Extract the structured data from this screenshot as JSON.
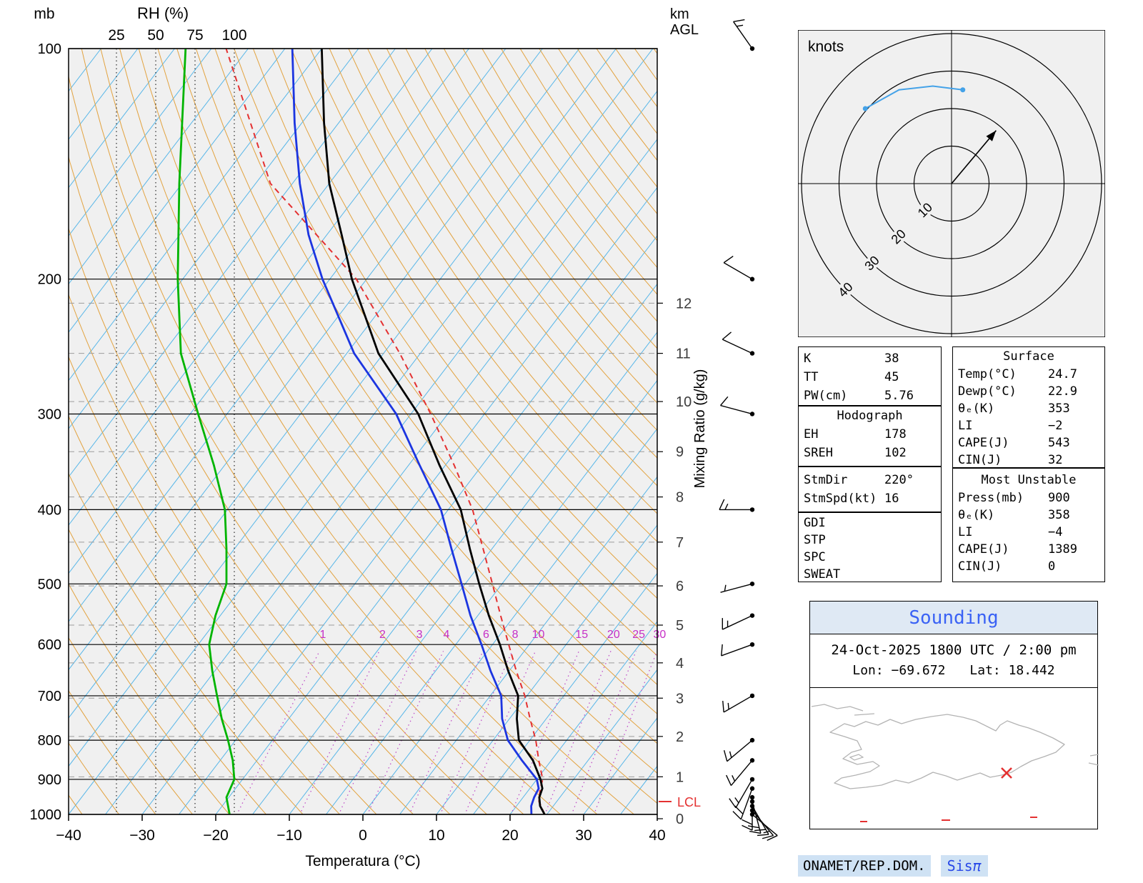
{
  "skewt": {
    "pressure_unit_label": "mb",
    "km_axis_label_line1": "km",
    "km_axis_label_line2": "AGL",
    "rh_axis_title": "RH (%)",
    "temp_axis_title": "Temperatura (°C)",
    "mixing_axis_title": "Mixing Ratio (g/kg)",
    "lcl_label": "LCL"
  },
  "chart_data": {
    "type": "line",
    "subtype": "skew_t_log_p_sounding",
    "pressure_ticks_mb": [
      100,
      200,
      300,
      400,
      500,
      600,
      700,
      800,
      900,
      1000
    ],
    "temp_ticks_c": [
      -40,
      -30,
      -20,
      -10,
      0,
      10,
      20,
      30,
      40
    ],
    "temp_range_c": [
      -40,
      40
    ],
    "rh_ticks_pct": [
      25,
      50,
      75,
      100
    ],
    "km_ticks": [
      0,
      1,
      2,
      3,
      4,
      5,
      6,
      7,
      8,
      9,
      10,
      11,
      12
    ],
    "km_tick_pressures_mb": [
      1013,
      893,
      791,
      705,
      634,
      566,
      503,
      441,
      385,
      336,
      289,
      250,
      215
    ],
    "mixing_ratio_lines_g_kg": [
      1,
      2,
      3,
      4,
      6,
      8,
      10,
      15,
      20,
      25,
      30
    ],
    "isotherm_step_c": 5,
    "dry_adiabat_theta_k": {
      "min": 230,
      "max": 475,
      "step": 5
    },
    "lcl_pressure_mb": 962,
    "series": {
      "temperature": {
        "color": "#000000",
        "pressure_mb": [
          1000,
          975,
          950,
          925,
          900,
          850,
          800,
          750,
          700,
          650,
          600,
          550,
          500,
          450,
          400,
          350,
          300,
          250,
          200,
          175,
          150,
          125,
          100
        ],
        "temp_c": [
          24.7,
          23.2,
          22.2,
          21.7,
          20.5,
          17.5,
          13.5,
          11.0,
          8.8,
          4.9,
          1.0,
          -3.5,
          -8.1,
          -13.0,
          -18.3,
          -25.8,
          -34.0,
          -45.7,
          -57.0,
          -63.0,
          -70.0,
          -77.0,
          -85.0
        ]
      },
      "dewpoint": {
        "color": "#1c35e0",
        "pressure_mb": [
          1000,
          975,
          950,
          925,
          900,
          850,
          800,
          750,
          700,
          650,
          600,
          550,
          500,
          450,
          400,
          350,
          300,
          250,
          200,
          175,
          150,
          125,
          100
        ],
        "temp_c": [
          22.9,
          22.0,
          21.5,
          21.2,
          20.0,
          16.0,
          12.0,
          9.0,
          6.5,
          2.5,
          -1.5,
          -6.0,
          -10.5,
          -15.5,
          -21.0,
          -28.5,
          -37.0,
          -49.0,
          -61.0,
          -67.5,
          -74.0,
          -81.0,
          -89.0
        ]
      },
      "parcel": {
        "color": "#e43131",
        "style": "dashed",
        "pressure_mb": [
          1000,
          962,
          925,
          900,
          850,
          800,
          750,
          700,
          650,
          600,
          550,
          500,
          450,
          400,
          350,
          300,
          250,
          200,
          150,
          100
        ],
        "temp_c": [
          24.7,
          22.6,
          21.4,
          20.8,
          18.3,
          15.8,
          12.8,
          9.7,
          6.0,
          2.2,
          -1.9,
          -6.3,
          -11.2,
          -16.7,
          -23.8,
          -32.3,
          -42.8,
          -56.4,
          -78.0,
          -98.0
        ]
      },
      "relative_humidity": {
        "color": "#00b400",
        "pressure_mb": [
          1000,
          950,
          900,
          850,
          800,
          750,
          700,
          650,
          600,
          550,
          500,
          450,
          400,
          350,
          300,
          250,
          200,
          150,
          100
        ],
        "rh_pct": [
          97,
          95,
          100,
          99,
          96,
          92,
          89,
          86,
          84,
          88,
          95,
          95,
          94,
          87,
          77,
          66,
          64,
          65,
          69
        ]
      }
    },
    "winds": [
      {
        "pressure_mb": 1000,
        "dir_deg": 130,
        "speed_kt": 10
      },
      {
        "pressure_mb": 988,
        "dir_deg": 140,
        "speed_kt": 15
      },
      {
        "pressure_mb": 975,
        "dir_deg": 150,
        "speed_kt": 18
      },
      {
        "pressure_mb": 962,
        "dir_deg": 165,
        "speed_kt": 20
      },
      {
        "pressure_mb": 950,
        "dir_deg": 180,
        "speed_kt": 20
      },
      {
        "pressure_mb": 925,
        "dir_deg": 200,
        "speed_kt": 18
      },
      {
        "pressure_mb": 900,
        "dir_deg": 210,
        "speed_kt": 15
      },
      {
        "pressure_mb": 850,
        "dir_deg": 220,
        "speed_kt": 15
      },
      {
        "pressure_mb": 800,
        "dir_deg": 230,
        "speed_kt": 15
      },
      {
        "pressure_mb": 700,
        "dir_deg": 240,
        "speed_kt": 15
      },
      {
        "pressure_mb": 600,
        "dir_deg": 250,
        "speed_kt": 10
      },
      {
        "pressure_mb": 550,
        "dir_deg": 245,
        "speed_kt": 15
      },
      {
        "pressure_mb": 500,
        "dir_deg": 255,
        "speed_kt": 5
      },
      {
        "pressure_mb": 400,
        "dir_deg": 270,
        "speed_kt": 15
      },
      {
        "pressure_mb": 300,
        "dir_deg": 285,
        "speed_kt": 10
      },
      {
        "pressure_mb": 250,
        "dir_deg": 295,
        "speed_kt": 10
      },
      {
        "pressure_mb": 200,
        "dir_deg": 300,
        "speed_kt": 10
      },
      {
        "pressure_mb": 100,
        "dir_deg": 325,
        "speed_kt": 15
      }
    ]
  },
  "hodograph": {
    "unit_label": "knots",
    "ring_values_kt": [
      10,
      20,
      30,
      40
    ],
    "trace_uv_kt": [
      [
        3,
        25
      ],
      [
        -5,
        26
      ],
      [
        -14,
        25
      ],
      [
        -23,
        20
      ]
    ],
    "trace_marker_uv_kt": [
      [
        3,
        25
      ],
      [
        -23,
        20
      ]
    ],
    "storm_motion_toward_deg": 40,
    "storm_dir_from_deg": 220,
    "storm_speed_kt": 16
  },
  "tables": {
    "indices": {
      "rows": [
        [
          "K",
          "38"
        ],
        [
          "TT",
          "45"
        ],
        [
          "PW(cm)",
          "5.76"
        ]
      ]
    },
    "hodograph_box": {
      "title": "Hodograph",
      "rows": [
        [
          "EH",
          "178"
        ],
        [
          "SREH",
          "102"
        ]
      ]
    },
    "storm_box": {
      "rows": [
        [
          "StmDir",
          "220°"
        ],
        [
          "StmSpd(kt)",
          "16"
        ]
      ]
    },
    "extra_box": {
      "rows": [
        [
          "GDI",
          ""
        ],
        [
          "STP",
          ""
        ],
        [
          "SPC",
          ""
        ],
        [
          "SWEAT",
          ""
        ]
      ]
    },
    "surface": {
      "title": "Surface",
      "rows": [
        [
          "Temp(°C)",
          "24.7"
        ],
        [
          "Dewp(°C)",
          "22.9"
        ],
        [
          "θₑ(K)",
          "353"
        ],
        [
          "LI",
          "−2"
        ],
        [
          "CAPE(J)",
          "543"
        ],
        [
          "CIN(J)",
          "32"
        ]
      ]
    },
    "most_unstable": {
      "title": "Most Unstable",
      "rows": [
        [
          "Press(mb)",
          "900"
        ],
        [
          "θₑ(K)",
          "358"
        ],
        [
          "LI",
          "−4"
        ],
        [
          "CAPE(J)",
          "1389"
        ],
        [
          "CIN(J)",
          "0"
        ]
      ]
    }
  },
  "sounding_panel": {
    "title": "Sounding",
    "datetime": "24-Oct-2025 1800 UTC / 2:00 pm",
    "lon_label": "Lon: −69.672",
    "lat_label": "Lat: 18.442",
    "marker_symbol": "×",
    "marker_color": "#e43131"
  },
  "footer": {
    "agency": "ONAMET/REP.DOM.",
    "brand_text": "Sis",
    "brand_symbol": "π"
  }
}
